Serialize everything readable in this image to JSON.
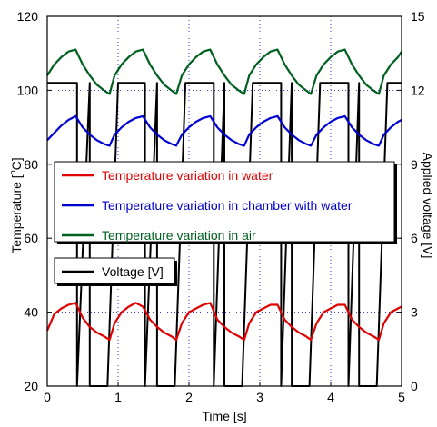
{
  "chart_data": {
    "type": "line",
    "xlabel": "Time [s]",
    "ylabel_left": "Temperature [",
    "ylabel_left_unit": "C]",
    "ylabel_left_degree": "o",
    "ylabel_right": "Applied voltage [V]",
    "xlim": [
      0,
      5
    ],
    "ylim_left": [
      20,
      120
    ],
    "ylim_right": [
      0,
      15
    ],
    "x_ticks": [
      "0",
      "1",
      "2",
      "3",
      "4",
      "5"
    ],
    "y_left_ticks": [
      "20",
      "40",
      "60",
      "80",
      "100",
      "120"
    ],
    "y_right_ticks": [
      "0",
      "3",
      "6",
      "9",
      "12",
      "15"
    ],
    "grid": "dotted",
    "series": [
      {
        "name": "Temperature variation in water",
        "axis": "left",
        "color": "#e00000",
        "x": [
          0,
          0.1,
          0.2,
          0.3,
          0.4,
          0.5,
          0.6,
          0.7,
          0.8,
          0.88,
          0.95,
          1.05,
          1.15,
          1.25,
          1.35,
          1.45,
          1.55,
          1.65,
          1.75,
          1.82,
          1.9,
          2.0,
          2.1,
          2.2,
          2.3,
          2.4,
          2.5,
          2.6,
          2.7,
          2.78,
          2.85,
          2.95,
          3.05,
          3.15,
          3.25,
          3.35,
          3.45,
          3.55,
          3.65,
          3.72,
          3.8,
          3.9,
          4.0,
          4.1,
          4.2,
          4.3,
          4.4,
          4.5,
          4.6,
          4.68,
          4.75,
          4.85,
          4.95,
          5.0
        ],
        "y": [
          35,
          39.5,
          41,
          42,
          42.5,
          38.5,
          36,
          34.5,
          33.5,
          32.5,
          37,
          40,
          41.5,
          42.5,
          41.5,
          38,
          36,
          34.5,
          33.5,
          32.5,
          37,
          40,
          41,
          42,
          42.5,
          38,
          36,
          34.5,
          33.5,
          32.5,
          37,
          40,
          41,
          42,
          42,
          38,
          36,
          34.5,
          33.5,
          32.5,
          37,
          40,
          41,
          42,
          42,
          38,
          36,
          34.5,
          33.5,
          32.5,
          37,
          40,
          41,
          41.5
        ]
      },
      {
        "name": "Temperature variation in chamber with water",
        "axis": "left",
        "color": "#0000d0",
        "x": [
          0,
          0.1,
          0.2,
          0.3,
          0.4,
          0.5,
          0.6,
          0.7,
          0.8,
          0.88,
          0.95,
          1.05,
          1.15,
          1.25,
          1.35,
          1.45,
          1.55,
          1.65,
          1.75,
          1.82,
          1.9,
          2.0,
          2.1,
          2.2,
          2.3,
          2.4,
          2.5,
          2.6,
          2.7,
          2.78,
          2.85,
          2.95,
          3.05,
          3.15,
          3.25,
          3.35,
          3.45,
          3.55,
          3.65,
          3.72,
          3.8,
          3.9,
          4.0,
          4.1,
          4.2,
          4.3,
          4.4,
          4.5,
          4.6,
          4.68,
          4.75,
          4.85,
          4.95,
          5.0
        ],
        "y": [
          86.5,
          88.5,
          90.5,
          92,
          93,
          90,
          88,
          86.5,
          85.5,
          85,
          88,
          90,
          91.5,
          92.5,
          93,
          90,
          88,
          86.5,
          85.5,
          85,
          88,
          90,
          91.5,
          92.5,
          93,
          90,
          88,
          86.5,
          85.5,
          85,
          88,
          90,
          91.5,
          92.5,
          93,
          90,
          88,
          86.5,
          85.5,
          85,
          88,
          90,
          91.5,
          92.5,
          93,
          90,
          88,
          86.5,
          85.5,
          85,
          88,
          90,
          91.5,
          92
        ]
      },
      {
        "name": "Temperature variation in air",
        "axis": "left",
        "color": "#006020",
        "x": [
          0,
          0.1,
          0.2,
          0.3,
          0.4,
          0.5,
          0.6,
          0.7,
          0.8,
          0.88,
          0.95,
          1.05,
          1.15,
          1.25,
          1.35,
          1.45,
          1.55,
          1.65,
          1.75,
          1.82,
          1.9,
          2.0,
          2.1,
          2.2,
          2.3,
          2.4,
          2.5,
          2.6,
          2.7,
          2.78,
          2.85,
          2.95,
          3.05,
          3.15,
          3.25,
          3.35,
          3.45,
          3.55,
          3.65,
          3.72,
          3.8,
          3.9,
          4.0,
          4.1,
          4.2,
          4.3,
          4.4,
          4.5,
          4.6,
          4.68,
          4.75,
          4.85,
          4.95,
          5.0
        ],
        "y": [
          104,
          107,
          109,
          110.5,
          111,
          107,
          104,
          101.5,
          100,
          99,
          104,
          107,
          109,
          110.5,
          111,
          107,
          104,
          101.5,
          100,
          99,
          104,
          107,
          109,
          110.5,
          111,
          107,
          104,
          101.5,
          100,
          99,
          104,
          107,
          109,
          110.5,
          111,
          107,
          104,
          101.5,
          100,
          99,
          104,
          107,
          109,
          110.5,
          111,
          107,
          104,
          101.5,
          100,
          99,
          104,
          107,
          109,
          110.5
        ]
      },
      {
        "name": "Voltage [V]",
        "axis": "right",
        "color": "#000000",
        "x": [
          0,
          0.42,
          0.42,
          0.6,
          0.6,
          0.85,
          0.85,
          1.0,
          1.0,
          1.38,
          1.38,
          1.55,
          1.55,
          1.8,
          1.8,
          1.95,
          1.95,
          2.35,
          2.35,
          2.5,
          2.5,
          2.75,
          2.75,
          2.9,
          2.9,
          3.3,
          3.3,
          3.45,
          3.45,
          3.7,
          3.7,
          3.85,
          3.85,
          4.25,
          4.25,
          4.4,
          4.4,
          4.65,
          4.65,
          4.8,
          4.8,
          5.0
        ],
        "y": [
          12.3,
          12.3,
          0,
          12.3,
          0,
          0,
          0,
          12.3,
          12.3,
          12.3,
          0,
          12.3,
          0,
          0,
          0,
          12.3,
          12.3,
          12.3,
          0,
          12.3,
          0,
          0,
          0,
          12.3,
          12.3,
          12.3,
          0,
          12.3,
          0,
          0,
          0,
          12.3,
          12.3,
          12.3,
          0,
          12.3,
          0,
          0,
          0,
          12.3,
          12.3,
          12.3
        ]
      }
    ],
    "legend": [
      "Temperature variation in water",
      "Temperature variation in chamber with water",
      "Temperature variation in air",
      "Voltage [V]"
    ]
  }
}
